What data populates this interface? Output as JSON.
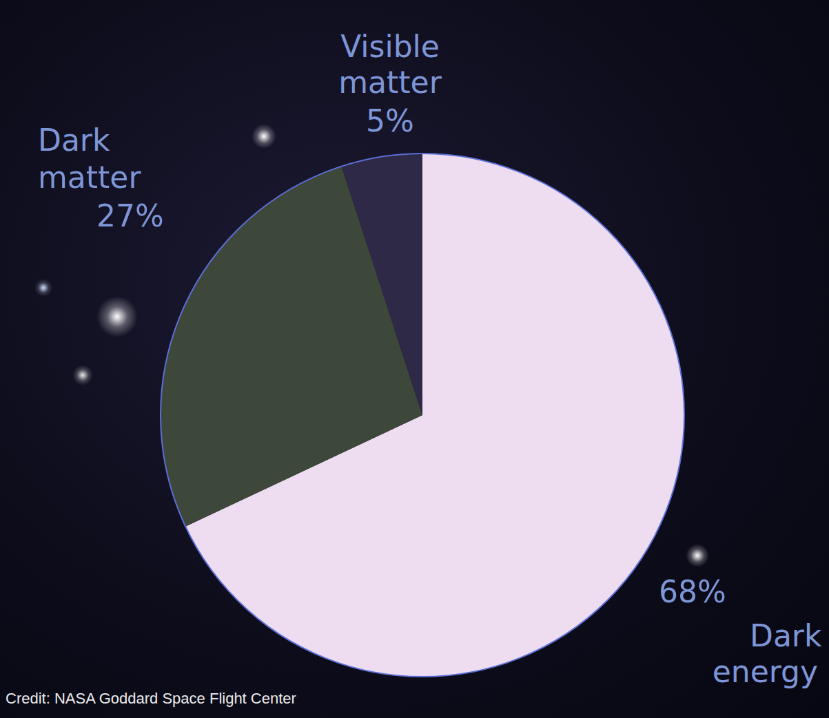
{
  "chart_data": {
    "type": "pie",
    "categories": [
      "Dark energy",
      "Dark matter",
      "Visible matter"
    ],
    "values": [
      68,
      27,
      5
    ],
    "value_labels": [
      "68%",
      "27%",
      "5%"
    ],
    "colors": [
      "#eedcf0",
      "#3d473a",
      "#2d2946"
    ],
    "data_labels": true,
    "annotations": [
      "Credit: NASA Goddard Space Flight Center"
    ]
  }
}
